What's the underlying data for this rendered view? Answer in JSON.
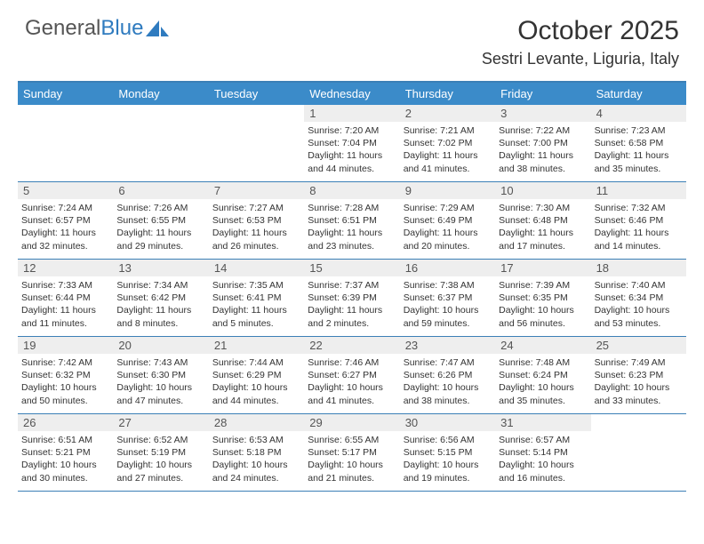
{
  "brand": {
    "part1": "General",
    "part2": "Blue"
  },
  "title": "October 2025",
  "location": "Sestri Levante, Liguria, Italy",
  "colors": {
    "header_bg": "#3b8bc9",
    "border": "#3b7fb6",
    "daynum_bg": "#eeeeee",
    "text": "#333333",
    "white": "#ffffff"
  },
  "day_names": [
    "Sunday",
    "Monday",
    "Tuesday",
    "Wednesday",
    "Thursday",
    "Friday",
    "Saturday"
  ],
  "weeks": [
    [
      {
        "n": "",
        "sr": "",
        "ss": "",
        "dl": ""
      },
      {
        "n": "",
        "sr": "",
        "ss": "",
        "dl": ""
      },
      {
        "n": "",
        "sr": "",
        "ss": "",
        "dl": ""
      },
      {
        "n": "1",
        "sr": "Sunrise: 7:20 AM",
        "ss": "Sunset: 7:04 PM",
        "dl": "Daylight: 11 hours and 44 minutes."
      },
      {
        "n": "2",
        "sr": "Sunrise: 7:21 AM",
        "ss": "Sunset: 7:02 PM",
        "dl": "Daylight: 11 hours and 41 minutes."
      },
      {
        "n": "3",
        "sr": "Sunrise: 7:22 AM",
        "ss": "Sunset: 7:00 PM",
        "dl": "Daylight: 11 hours and 38 minutes."
      },
      {
        "n": "4",
        "sr": "Sunrise: 7:23 AM",
        "ss": "Sunset: 6:58 PM",
        "dl": "Daylight: 11 hours and 35 minutes."
      }
    ],
    [
      {
        "n": "5",
        "sr": "Sunrise: 7:24 AM",
        "ss": "Sunset: 6:57 PM",
        "dl": "Daylight: 11 hours and 32 minutes."
      },
      {
        "n": "6",
        "sr": "Sunrise: 7:26 AM",
        "ss": "Sunset: 6:55 PM",
        "dl": "Daylight: 11 hours and 29 minutes."
      },
      {
        "n": "7",
        "sr": "Sunrise: 7:27 AM",
        "ss": "Sunset: 6:53 PM",
        "dl": "Daylight: 11 hours and 26 minutes."
      },
      {
        "n": "8",
        "sr": "Sunrise: 7:28 AM",
        "ss": "Sunset: 6:51 PM",
        "dl": "Daylight: 11 hours and 23 minutes."
      },
      {
        "n": "9",
        "sr": "Sunrise: 7:29 AM",
        "ss": "Sunset: 6:49 PM",
        "dl": "Daylight: 11 hours and 20 minutes."
      },
      {
        "n": "10",
        "sr": "Sunrise: 7:30 AM",
        "ss": "Sunset: 6:48 PM",
        "dl": "Daylight: 11 hours and 17 minutes."
      },
      {
        "n": "11",
        "sr": "Sunrise: 7:32 AM",
        "ss": "Sunset: 6:46 PM",
        "dl": "Daylight: 11 hours and 14 minutes."
      }
    ],
    [
      {
        "n": "12",
        "sr": "Sunrise: 7:33 AM",
        "ss": "Sunset: 6:44 PM",
        "dl": "Daylight: 11 hours and 11 minutes."
      },
      {
        "n": "13",
        "sr": "Sunrise: 7:34 AM",
        "ss": "Sunset: 6:42 PM",
        "dl": "Daylight: 11 hours and 8 minutes."
      },
      {
        "n": "14",
        "sr": "Sunrise: 7:35 AM",
        "ss": "Sunset: 6:41 PM",
        "dl": "Daylight: 11 hours and 5 minutes."
      },
      {
        "n": "15",
        "sr": "Sunrise: 7:37 AM",
        "ss": "Sunset: 6:39 PM",
        "dl": "Daylight: 11 hours and 2 minutes."
      },
      {
        "n": "16",
        "sr": "Sunrise: 7:38 AM",
        "ss": "Sunset: 6:37 PM",
        "dl": "Daylight: 10 hours and 59 minutes."
      },
      {
        "n": "17",
        "sr": "Sunrise: 7:39 AM",
        "ss": "Sunset: 6:35 PM",
        "dl": "Daylight: 10 hours and 56 minutes."
      },
      {
        "n": "18",
        "sr": "Sunrise: 7:40 AM",
        "ss": "Sunset: 6:34 PM",
        "dl": "Daylight: 10 hours and 53 minutes."
      }
    ],
    [
      {
        "n": "19",
        "sr": "Sunrise: 7:42 AM",
        "ss": "Sunset: 6:32 PM",
        "dl": "Daylight: 10 hours and 50 minutes."
      },
      {
        "n": "20",
        "sr": "Sunrise: 7:43 AM",
        "ss": "Sunset: 6:30 PM",
        "dl": "Daylight: 10 hours and 47 minutes."
      },
      {
        "n": "21",
        "sr": "Sunrise: 7:44 AM",
        "ss": "Sunset: 6:29 PM",
        "dl": "Daylight: 10 hours and 44 minutes."
      },
      {
        "n": "22",
        "sr": "Sunrise: 7:46 AM",
        "ss": "Sunset: 6:27 PM",
        "dl": "Daylight: 10 hours and 41 minutes."
      },
      {
        "n": "23",
        "sr": "Sunrise: 7:47 AM",
        "ss": "Sunset: 6:26 PM",
        "dl": "Daylight: 10 hours and 38 minutes."
      },
      {
        "n": "24",
        "sr": "Sunrise: 7:48 AM",
        "ss": "Sunset: 6:24 PM",
        "dl": "Daylight: 10 hours and 35 minutes."
      },
      {
        "n": "25",
        "sr": "Sunrise: 7:49 AM",
        "ss": "Sunset: 6:23 PM",
        "dl": "Daylight: 10 hours and 33 minutes."
      }
    ],
    [
      {
        "n": "26",
        "sr": "Sunrise: 6:51 AM",
        "ss": "Sunset: 5:21 PM",
        "dl": "Daylight: 10 hours and 30 minutes."
      },
      {
        "n": "27",
        "sr": "Sunrise: 6:52 AM",
        "ss": "Sunset: 5:19 PM",
        "dl": "Daylight: 10 hours and 27 minutes."
      },
      {
        "n": "28",
        "sr": "Sunrise: 6:53 AM",
        "ss": "Sunset: 5:18 PM",
        "dl": "Daylight: 10 hours and 24 minutes."
      },
      {
        "n": "29",
        "sr": "Sunrise: 6:55 AM",
        "ss": "Sunset: 5:17 PM",
        "dl": "Daylight: 10 hours and 21 minutes."
      },
      {
        "n": "30",
        "sr": "Sunrise: 6:56 AM",
        "ss": "Sunset: 5:15 PM",
        "dl": "Daylight: 10 hours and 19 minutes."
      },
      {
        "n": "31",
        "sr": "Sunrise: 6:57 AM",
        "ss": "Sunset: 5:14 PM",
        "dl": "Daylight: 10 hours and 16 minutes."
      },
      {
        "n": "",
        "sr": "",
        "ss": "",
        "dl": ""
      }
    ]
  ]
}
